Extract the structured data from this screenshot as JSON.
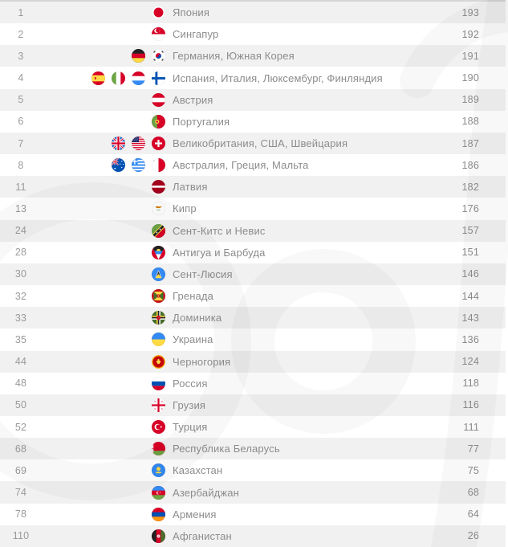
{
  "table": {
    "rows": [
      {
        "rank": "1",
        "flags": [
          "jp"
        ],
        "name": "Япония",
        "value": "193"
      },
      {
        "rank": "2",
        "flags": [
          "sg"
        ],
        "name": "Сингапур",
        "value": "192"
      },
      {
        "rank": "3",
        "flags": [
          "de",
          "kr"
        ],
        "name": "Германия, Южная Корея",
        "value": "191"
      },
      {
        "rank": "4",
        "flags": [
          "es",
          "it",
          "lu",
          "fi"
        ],
        "name": "Испания, Италия, Люксембург, Финляндия",
        "value": "190"
      },
      {
        "rank": "5",
        "flags": [
          "at"
        ],
        "name": "Австрия",
        "value": "189"
      },
      {
        "rank": "6",
        "flags": [
          "pt"
        ],
        "name": "Португалия",
        "value": "188"
      },
      {
        "rank": "7",
        "flags": [
          "gb",
          "us",
          "ch"
        ],
        "name": "Великобритания, США, Швейцария",
        "value": "187"
      },
      {
        "rank": "8",
        "flags": [
          "au",
          "gr",
          "mt"
        ],
        "name": "Австралия, Греция, Мальта",
        "value": "186"
      },
      {
        "rank": "11",
        "flags": [
          "lv"
        ],
        "name": "Латвия",
        "value": "182"
      },
      {
        "rank": "13",
        "flags": [
          "cy"
        ],
        "name": "Кипр",
        "value": "176"
      },
      {
        "rank": "24",
        "flags": [
          "kn"
        ],
        "name": "Сент-Китс и Невис",
        "value": "157"
      },
      {
        "rank": "28",
        "flags": [
          "ag"
        ],
        "name": "Антигуа и Барбуда",
        "value": "151"
      },
      {
        "rank": "30",
        "flags": [
          "lc"
        ],
        "name": "Сент-Люсия",
        "value": "146"
      },
      {
        "rank": "32",
        "flags": [
          "gd"
        ],
        "name": "Гренада",
        "value": "144"
      },
      {
        "rank": "33",
        "flags": [
          "dm"
        ],
        "name": "Доминика",
        "value": "143"
      },
      {
        "rank": "35",
        "flags": [
          "ua"
        ],
        "name": "Украина",
        "value": "136"
      },
      {
        "rank": "44",
        "flags": [
          "me"
        ],
        "name": "Черногория",
        "value": "124"
      },
      {
        "rank": "48",
        "flags": [
          "ru"
        ],
        "name": "Россия",
        "value": "118"
      },
      {
        "rank": "50",
        "flags": [
          "ge"
        ],
        "name": "Грузия",
        "value": "116"
      },
      {
        "rank": "52",
        "flags": [
          "tr"
        ],
        "name": "Турция",
        "value": "111"
      },
      {
        "rank": "68",
        "flags": [
          "by"
        ],
        "name": "Республика Беларусь",
        "value": "77"
      },
      {
        "rank": "69",
        "flags": [
          "kz"
        ],
        "name": "Казахстан",
        "value": "75"
      },
      {
        "rank": "74",
        "flags": [
          "az"
        ],
        "name": "Азербайджан",
        "value": "68"
      },
      {
        "rank": "78",
        "flags": [
          "am"
        ],
        "name": "Армения",
        "value": "64"
      },
      {
        "rank": "110",
        "flags": [
          "af"
        ],
        "name": "Афганистан",
        "value": "26"
      }
    ]
  },
  "flag_icons": {
    "jp": "flag-japan",
    "sg": "flag-singapore",
    "de": "flag-germany",
    "kr": "flag-south-korea",
    "es": "flag-spain",
    "it": "flag-italy",
    "lu": "flag-luxembourg",
    "fi": "flag-finland",
    "at": "flag-austria",
    "pt": "flag-portugal",
    "gb": "flag-united-kingdom",
    "us": "flag-usa",
    "ch": "flag-switzerland",
    "au": "flag-australia",
    "gr": "flag-greece",
    "mt": "flag-malta",
    "lv": "flag-latvia",
    "cy": "flag-cyprus",
    "kn": "flag-saint-kitts-nevis",
    "ag": "flag-antigua-barbuda",
    "lc": "flag-saint-lucia",
    "gd": "flag-grenada",
    "dm": "flag-dominica",
    "ua": "flag-ukraine",
    "me": "flag-montenegro",
    "ru": "flag-russia",
    "ge": "flag-georgia",
    "tr": "flag-turkey",
    "by": "flag-belarus",
    "kz": "flag-kazakhstan",
    "az": "flag-azerbaijan",
    "am": "flag-armenia",
    "af": "flag-afghanistan"
  },
  "colors": {
    "row_alt": "#f1f1f1",
    "row_base": "#ffffff",
    "top_border": "#d6d6d6",
    "rank_text": "#9a9a9a",
    "name_text": "#8c8c8c",
    "value_text": "#8c8c8c",
    "flag_red": "#d80027",
    "flag_blue": "#0052b4",
    "flag_light_blue": "#338af3",
    "flag_yellow": "#ffda44",
    "flag_green": "#6da544",
    "watermark": "rgba(0,0,0,0.026)"
  }
}
